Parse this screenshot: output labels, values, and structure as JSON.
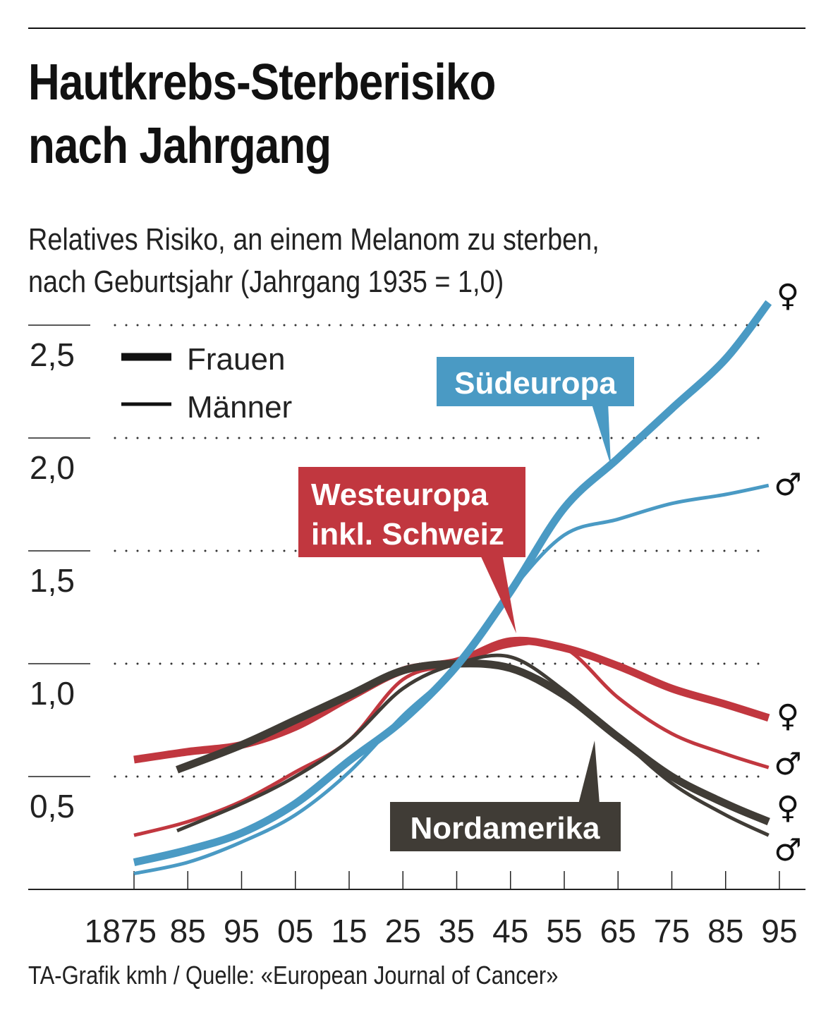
{
  "title_line1": "Hautkrebs-Sterberisiko",
  "title_line2": "nach Jahrgang",
  "subtitle_line1": "Relatives Risiko, an einem Melanom zu sterben,",
  "subtitle_line2": "nach Geburtsjahr (Jahrgang 1935 = 1,0)",
  "source": "TA-Grafik kmh / Quelle: «European Journal of Cancer»",
  "chart_data": {
    "type": "line",
    "title": "Hautkrebs-Sterberisiko nach Jahrgang",
    "xlabel": "Geburtsjahr",
    "ylabel": "Relatives Risiko (Jahrgang 1935 = 1,0)",
    "xlim": [
      1875,
      1995
    ],
    "ylim": [
      0,
      2.5
    ],
    "grid": true,
    "x_ticks": [
      1875,
      1885,
      1895,
      1905,
      1915,
      1925,
      1935,
      1945,
      1955,
      1965,
      1975,
      1985,
      1995
    ],
    "x_tick_labels": [
      "1875",
      "85",
      "95",
      "05",
      "15",
      "25",
      "35",
      "45",
      "55",
      "65",
      "75",
      "85",
      "95"
    ],
    "y_ticks": [
      0.5,
      1.0,
      1.5,
      2.0,
      2.5
    ],
    "y_tick_labels": [
      "0,5",
      "1,0",
      "1,5",
      "2,0",
      "2,5"
    ],
    "legend": {
      "placement": "top-left",
      "entries": [
        {
          "label": "Frauen",
          "style": "thick"
        },
        {
          "label": "Männer",
          "style": "thin"
        }
      ]
    },
    "regions": [
      {
        "name": "Südeuropa",
        "color": "#4a9ac4",
        "label_color": "#4a9ac4"
      },
      {
        "name": "Westeuropa inkl. Schweiz",
        "label_lines": [
          "Westeuropa",
          "inkl. Schweiz"
        ],
        "color": "#c1373f"
      },
      {
        "name": "Nordamerika",
        "color": "#403c36"
      }
    ],
    "gender_symbols": {
      "female": "♀",
      "male": "♂"
    },
    "series": [
      {
        "name": "Südeuropa Frauen",
        "region": 0,
        "sex": "female",
        "x": [
          1875,
          1885,
          1895,
          1905,
          1915,
          1925,
          1935,
          1945,
          1955,
          1965,
          1975,
          1985,
          1993
        ],
        "values": [
          0.12,
          0.175,
          0.25,
          0.38,
          0.57,
          0.75,
          0.99,
          1.32,
          1.69,
          1.91,
          2.13,
          2.35,
          2.6
        ]
      },
      {
        "name": "Südeuropa Männer",
        "region": 0,
        "sex": "male",
        "x": [
          1875,
          1885,
          1895,
          1905,
          1915,
          1925,
          1935,
          1945,
          1955,
          1965,
          1975,
          1985,
          1993
        ],
        "values": [
          0.07,
          0.12,
          0.21,
          0.33,
          0.52,
          0.77,
          0.99,
          1.32,
          1.57,
          1.64,
          1.71,
          1.75,
          1.79
        ]
      },
      {
        "name": "Westeuropa Frauen",
        "region": 1,
        "sex": "female",
        "x": [
          1875,
          1885,
          1895,
          1905,
          1915,
          1925,
          1935,
          1945,
          1955,
          1965,
          1975,
          1985,
          1993
        ],
        "values": [
          0.575,
          0.61,
          0.64,
          0.72,
          0.85,
          0.97,
          1.01,
          1.1,
          1.07,
          0.99,
          0.89,
          0.82,
          0.76
        ]
      },
      {
        "name": "Westeuropa Männer",
        "region": 1,
        "sex": "male",
        "x": [
          1875,
          1885,
          1895,
          1905,
          1915,
          1925,
          1935,
          1945,
          1955,
          1965,
          1975,
          1985,
          1993
        ],
        "values": [
          0.24,
          0.3,
          0.39,
          0.52,
          0.66,
          0.93,
          1.0,
          1.08,
          1.07,
          0.85,
          0.69,
          0.6,
          0.54
        ]
      },
      {
        "name": "Nordamerika Frauen",
        "region": 2,
        "sex": "female",
        "x": [
          1883,
          1895,
          1905,
          1915,
          1925,
          1935,
          1945,
          1955,
          1965,
          1975,
          1985,
          1993
        ],
        "values": [
          0.53,
          0.64,
          0.75,
          0.86,
          0.97,
          1.0,
          0.98,
          0.86,
          0.675,
          0.5,
          0.38,
          0.3
        ]
      },
      {
        "name": "Nordamerika Männer",
        "region": 2,
        "sex": "male",
        "x": [
          1883,
          1895,
          1905,
          1915,
          1925,
          1935,
          1945,
          1955,
          1965,
          1975,
          1985,
          1993
        ],
        "values": [
          0.26,
          0.38,
          0.5,
          0.66,
          0.89,
          1.0,
          1.03,
          0.88,
          0.675,
          0.47,
          0.33,
          0.24
        ]
      }
    ]
  }
}
